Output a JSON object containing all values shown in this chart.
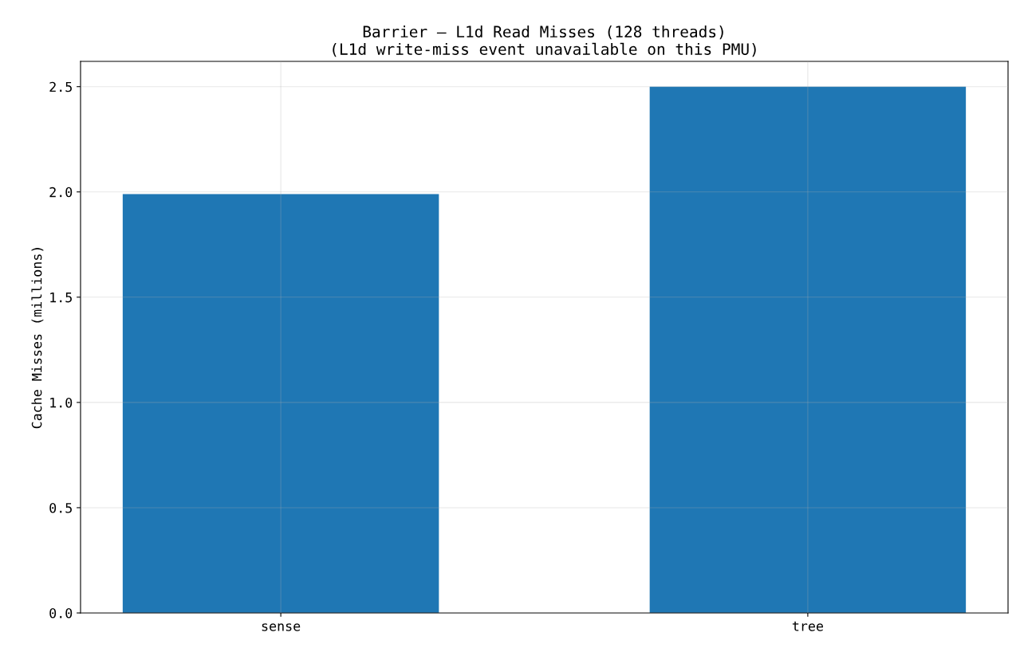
{
  "chart_data": {
    "type": "bar",
    "title": "Barrier – L1d Read Misses (128 threads)\n(L1d write-miss event unavailable on this PMU)",
    "ylabel": "Cache Misses (millions)",
    "categories": [
      "sense",
      "tree"
    ],
    "values": [
      1.99,
      2.5
    ],
    "color": "#1f77b4",
    "ylim": [
      0,
      2.62
    ],
    "yticks": [
      {
        "value": 0,
        "label": "0.0"
      },
      {
        "value": 0.5,
        "label": "0.5"
      },
      {
        "value": 1,
        "label": "1.0"
      },
      {
        "value": 1.5,
        "label": "1.5"
      },
      {
        "value": 2,
        "label": "2.0"
      },
      {
        "value": 2.5,
        "label": "2.5"
      }
    ],
    "grid": true
  }
}
